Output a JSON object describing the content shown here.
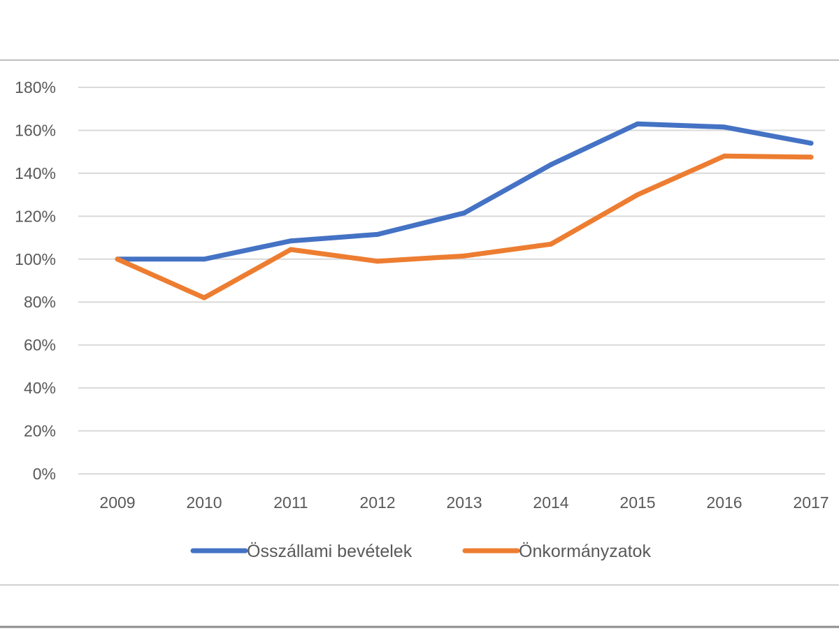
{
  "chart_data": {
    "type": "line",
    "categories": [
      "2009",
      "2010",
      "2011",
      "2012",
      "2013",
      "2014",
      "2015",
      "2016",
      "2017"
    ],
    "series": [
      {
        "name": "Összállami bevételek",
        "color": "#4472C4",
        "values": [
          100,
          100,
          108.5,
          111.5,
          121.5,
          144,
          163,
          161.5,
          154
        ]
      },
      {
        "name": "Önkormányzatok",
        "color": "#ED7D31",
        "values": [
          100,
          82,
          104.5,
          99,
          101.5,
          107,
          130,
          148,
          147.5
        ]
      }
    ],
    "y_ticks": [
      "0%",
      "20%",
      "40%",
      "60%",
      "80%",
      "100%",
      "120%",
      "140%",
      "160%",
      "180%"
    ],
    "ylim": [
      0,
      180
    ],
    "grid": true,
    "legend_position": "bottom",
    "colors": {
      "gridline": "#d9d9d9",
      "frame": "#bfbfbf",
      "text": "#595959"
    }
  }
}
